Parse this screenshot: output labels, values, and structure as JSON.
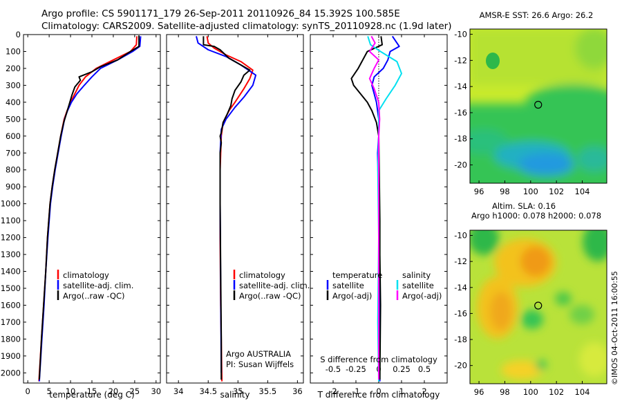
{
  "figure": {
    "title_line1": "Argo profile: CS 5901171_179 26-Sep-2011 20110926_84 15.392S 100.585E",
    "title_line2": "Climatology: CARS2009. Satellite-adjusted climatology: synTS_20110928.nc (1.9d later)",
    "credit": "©IMOS 04-Oct-2011 16:00:55"
  },
  "colors": {
    "climatology": "#ff0000",
    "satellite": "#0000ff",
    "argo": "#000000",
    "sat_s": "#00e0f0",
    "argo_s": "#ff00ff"
  },
  "chart_data": [
    {
      "id": "temperature",
      "type": "line",
      "xlabel": "temperature (deg C)",
      "xlim": [
        -1,
        31
      ],
      "ylim": [
        0,
        2060
      ],
      "xticks": [
        0,
        5,
        10,
        15,
        20,
        25,
        30
      ],
      "yticks": [
        0,
        100,
        200,
        300,
        400,
        500,
        600,
        700,
        800,
        900,
        1000,
        1100,
        1200,
        1300,
        1400,
        1500,
        1600,
        1700,
        1800,
        1900,
        2000
      ],
      "legend": [
        "climatology",
        "satellite-adj. clim.",
        "Argo(..raw -QC)"
      ],
      "series": [
        {
          "name": "climatology",
          "color": "#ff0000",
          "points": [
            [
              25.5,
              10
            ],
            [
              25.4,
              60
            ],
            [
              24,
              100
            ],
            [
              20,
              150
            ],
            [
              16,
              200
            ],
            [
              13.5,
              250
            ],
            [
              12,
              300
            ],
            [
              11,
              350
            ],
            [
              10,
              400
            ],
            [
              9.2,
              450
            ],
            [
              8.5,
              500
            ],
            [
              7.7,
              600
            ],
            [
              7,
              700
            ],
            [
              6.3,
              800
            ],
            [
              5.7,
              900
            ],
            [
              5.2,
              1000
            ],
            [
              4.6,
              1200
            ],
            [
              4.2,
              1400
            ],
            [
              3.7,
              1600
            ],
            [
              3.2,
              1800
            ],
            [
              2.6,
              2050
            ]
          ]
        },
        {
          "name": "satellite-adj. clim.",
          "color": "#0000ff",
          "points": [
            [
              26.4,
              10
            ],
            [
              26.2,
              70
            ],
            [
              24.5,
              100
            ],
            [
              21,
              150
            ],
            [
              17,
              200
            ],
            [
              15,
              250
            ],
            [
              13.2,
              300
            ],
            [
              11.5,
              350
            ],
            [
              10.2,
              400
            ],
            [
              9.3,
              450
            ],
            [
              8.6,
              500
            ],
            [
              7.8,
              600
            ],
            [
              7.1,
              700
            ],
            [
              6.4,
              800
            ],
            [
              5.8,
              900
            ],
            [
              5.3,
              1000
            ],
            [
              4.7,
              1200
            ],
            [
              4.2,
              1400
            ],
            [
              3.8,
              1600
            ],
            [
              3.3,
              1800
            ],
            [
              2.7,
              2050
            ]
          ]
        },
        {
          "name": "Argo(..raw -QC)",
          "color": "#000000",
          "points": [
            [
              26,
              5
            ],
            [
              26,
              70
            ],
            [
              24,
              100
            ],
            [
              21,
              150
            ],
            [
              17,
              190
            ],
            [
              15,
              220
            ],
            [
              12,
              250
            ],
            [
              12.3,
              270
            ],
            [
              11,
              310
            ],
            [
              10.3,
              360
            ],
            [
              9.6,
              420
            ],
            [
              9,
              470
            ],
            [
              8.4,
              520
            ],
            [
              7.7,
              600
            ],
            [
              7,
              700
            ],
            [
              6.3,
              800
            ],
            [
              5.7,
              900
            ],
            [
              5.2,
              1000
            ],
            [
              4.6,
              1200
            ],
            [
              4.2,
              1400
            ],
            [
              3.7,
              1600
            ],
            [
              3.2,
              1800
            ],
            [
              2.7,
              2040
            ]
          ]
        }
      ]
    },
    {
      "id": "salinity",
      "type": "line",
      "xlabel": "salinity",
      "xlim": [
        33.8,
        36.1
      ],
      "ylim": [
        0,
        2060
      ],
      "xticks": [
        34,
        34.5,
        35,
        35.5,
        36
      ],
      "legend": [
        "climatology",
        "satellite-adj. clim.",
        "Argo(..raw -QC)"
      ],
      "series": [
        {
          "name": "climatology",
          "color": "#ff0000",
          "points": [
            [
              34.48,
              10
            ],
            [
              34.5,
              50
            ],
            [
              34.6,
              80
            ],
            [
              34.8,
              120
            ],
            [
              35.05,
              160
            ],
            [
              35.25,
              210
            ],
            [
              35.2,
              260
            ],
            [
              35.1,
              320
            ],
            [
              34.95,
              400
            ],
            [
              34.85,
              450
            ],
            [
              34.75,
              520
            ],
            [
              34.72,
              600
            ],
            [
              34.7,
              800
            ],
            [
              34.7,
              1200
            ],
            [
              34.71,
              1600
            ],
            [
              34.73,
              2050
            ]
          ]
        },
        {
          "name": "satellite-adj. clim.",
          "color": "#0000ff",
          "points": [
            [
              34.3,
              10
            ],
            [
              34.33,
              50
            ],
            [
              34.5,
              90
            ],
            [
              34.8,
              130
            ],
            [
              35.05,
              180
            ],
            [
              35.3,
              240
            ],
            [
              35.25,
              300
            ],
            [
              35.1,
              370
            ],
            [
              34.95,
              430
            ],
            [
              34.8,
              500
            ],
            [
              34.72,
              560
            ],
            [
              34.7,
              700
            ],
            [
              34.7,
              1000
            ],
            [
              34.71,
              1500
            ],
            [
              34.72,
              2000
            ]
          ]
        },
        {
          "name": "Argo(..raw -QC)",
          "color": "#000000",
          "points": [
            [
              34.42,
              10
            ],
            [
              34.42,
              60
            ],
            [
              34.6,
              70
            ],
            [
              34.7,
              90
            ],
            [
              34.85,
              140
            ],
            [
              35.05,
              180
            ],
            [
              35.2,
              210
            ],
            [
              35.1,
              240
            ],
            [
              35.05,
              280
            ],
            [
              34.95,
              330
            ],
            [
              34.9,
              380
            ],
            [
              34.88,
              420
            ],
            [
              34.82,
              470
            ],
            [
              34.75,
              520
            ],
            [
              34.72,
              580
            ],
            [
              34.7,
              600
            ],
            [
              34.72,
              640
            ],
            [
              34.7,
              700
            ],
            [
              34.7,
              1000
            ],
            [
              34.71,
              1400
            ],
            [
              34.72,
              1800
            ],
            [
              34.72,
              2040
            ]
          ]
        }
      ],
      "annotation_line1": "Argo AUSTRALIA",
      "annotation_line2": "PI: Susan Wijffels"
    },
    {
      "id": "differences",
      "type": "line",
      "xlabel": "T difference from climatology",
      "xlabel_top": "S difference from climatology",
      "xlim": [
        -3,
        3
      ],
      "s_xlim": [
        -0.75,
        0.75
      ],
      "ylim": [
        0,
        2060
      ],
      "xticks": [
        -2,
        -1,
        0,
        1,
        2
      ],
      "s_xticks": [
        -0.5,
        -0.25,
        0,
        0.25,
        0.5
      ],
      "legend_temperature_title": "temperature",
      "legend_salinity_title": "salinity",
      "legend_items": [
        "satellite",
        "Argo(-adj)"
      ],
      "series": [
        {
          "name": "T satellite",
          "color": "#0000ff",
          "points": [
            [
              0.6,
              10
            ],
            [
              0.9,
              70
            ],
            [
              0.5,
              100
            ],
            [
              0.4,
              150
            ],
            [
              0.2,
              200
            ],
            [
              -0.2,
              250
            ],
            [
              -0.3,
              300
            ],
            [
              -0.1,
              400
            ],
            [
              0,
              500
            ],
            [
              0,
              600
            ],
            [
              -0.05,
              700
            ],
            [
              0,
              1000
            ],
            [
              0.02,
              1500
            ],
            [
              0.05,
              2050
            ]
          ]
        },
        {
          "name": "T Argo(-adj)",
          "color": "#000000",
          "points": [
            [
              0.1,
              10
            ],
            [
              0.15,
              60
            ],
            [
              -0.5,
              100
            ],
            [
              -0.9,
              200
            ],
            [
              -1.2,
              260
            ],
            [
              -1.1,
              300
            ],
            [
              -0.8,
              350
            ],
            [
              -0.5,
              400
            ],
            [
              -0.3,
              450
            ],
            [
              -0.1,
              520
            ],
            [
              0,
              600
            ],
            [
              0.02,
              800
            ],
            [
              0.05,
              1100
            ],
            [
              0.05,
              1300
            ],
            [
              0.08,
              1600
            ],
            [
              0.05,
              2040
            ]
          ]
        },
        {
          "name": "S satellite",
          "color": "#00e0f0",
          "points": [
            [
              -0.12,
              10
            ],
            [
              -0.09,
              60
            ],
            [
              0.02,
              100
            ],
            [
              0.2,
              160
            ],
            [
              0.25,
              230
            ],
            [
              0.18,
              300
            ],
            [
              0.08,
              380
            ],
            [
              0,
              450
            ],
            [
              0,
              600
            ],
            [
              -0.01,
              800
            ],
            [
              0,
              1200
            ],
            [
              -0.01,
              1700
            ],
            [
              0,
              2050
            ]
          ]
        },
        {
          "name": "S Argo(-adj)",
          "color": "#ff00ff",
          "points": [
            [
              -0.08,
              10
            ],
            [
              -0.04,
              50
            ],
            [
              -0.1,
              100
            ],
            [
              0,
              150
            ],
            [
              -0.05,
              200
            ],
            [
              -0.1,
              260
            ],
            [
              -0.05,
              320
            ],
            [
              0,
              400
            ],
            [
              0.01,
              500
            ],
            [
              0,
              600
            ],
            [
              0,
              800
            ],
            [
              0,
              1200
            ],
            [
              0,
              1600
            ],
            [
              0,
              2040
            ]
          ]
        }
      ]
    },
    {
      "id": "sst_map",
      "type": "heatmap",
      "title": "AMSR-E SST: 26.6 Argo: 26.2",
      "xlim": [
        95.3,
        105.9
      ],
      "ylim": [
        -21.4,
        -9.6
      ],
      "xticks": [
        96,
        98,
        100,
        102,
        104
      ],
      "yticks": [
        -10,
        -12,
        -14,
        -16,
        -18,
        -20
      ],
      "argo_position": [
        100.585,
        -15.392
      ]
    },
    {
      "id": "sla_map",
      "type": "heatmap",
      "title_line1": "Altim. SLA: 0.16",
      "title_line2": "Argo h1000: 0.078 h2000: 0.078",
      "xlim": [
        95.3,
        105.9
      ],
      "ylim": [
        -21.4,
        -9.6
      ],
      "xticks": [
        96,
        98,
        100,
        102,
        104
      ],
      "yticks": [
        -10,
        -12,
        -14,
        -16,
        -18,
        -20
      ],
      "argo_position": [
        100.585,
        -15.392
      ]
    }
  ]
}
